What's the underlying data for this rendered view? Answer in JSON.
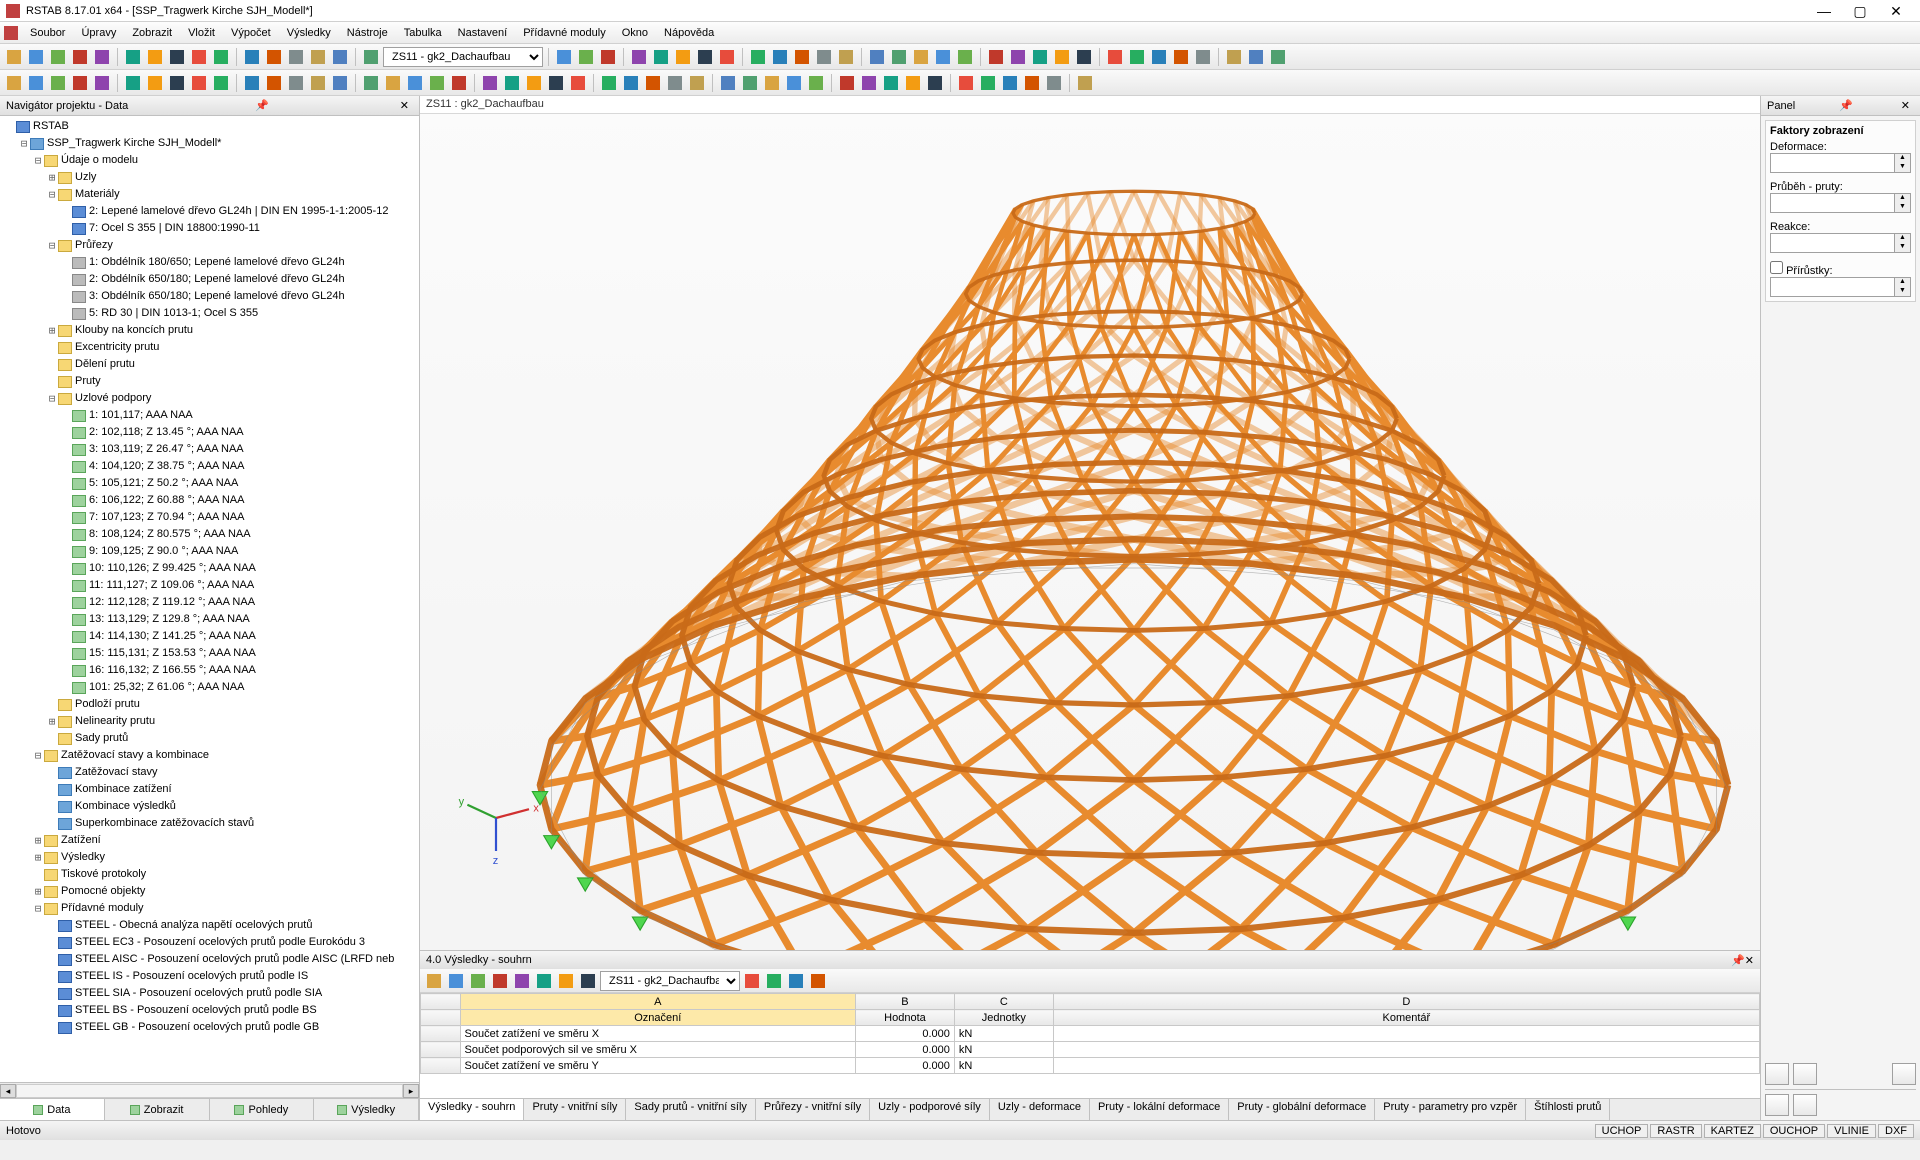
{
  "app": {
    "title": "RSTAB 8.17.01 x64 - [SSP_Tragwerk Kirche SJH_Modell*]"
  },
  "menu": [
    "Soubor",
    "Úpravy",
    "Zobrazit",
    "Vložit",
    "Výpočet",
    "Výsledky",
    "Nástroje",
    "Tabulka",
    "Nastavení",
    "Přídavné moduly",
    "Okno",
    "Nápověda"
  ],
  "toolbar1_combo": "ZS11 - gk2_Dachaufbau",
  "nav": {
    "title": "Navigátor projektu - Data",
    "root": "RSTAB",
    "model": "SSP_Tragwerk Kirche SJH_Modell*",
    "udaje": "Údaje o modelu",
    "uzly": "Uzly",
    "materialy": "Materiály",
    "mat_items": [
      "2: Lepené lamelové dřevo GL24h | DIN EN 1995-1-1:2005-12",
      "7: Ocel S 355 | DIN 18800:1990-11"
    ],
    "prurezy": "Průřezy",
    "prurez_items": [
      "1: Obdélník 180/650; Lepené lamelové dřevo GL24h",
      "2: Obdélník 650/180; Lepené lamelové dřevo GL24h",
      "3: Obdélník 650/180; Lepené lamelové dřevo GL24h",
      "5: RD 30 | DIN 1013-1; Ocel S 355"
    ],
    "klouby": "Klouby na koncích prutu",
    "excentricity": "Excentricity prutu",
    "deleni": "Dělení prutu",
    "pruty": "Pruty",
    "uzlove_podpory": "Uzlové podpory",
    "podpory_items": [
      "1: 101,117; AAA NAA",
      "2: 102,118; Z 13.45 °; AAA NAA",
      "3: 103,119; Z 26.47 °; AAA NAA",
      "4: 104,120; Z 38.75 °; AAA NAA",
      "5: 105,121; Z 50.2 °; AAA NAA",
      "6: 106,122; Z 60.88 °; AAA NAA",
      "7: 107,123; Z 70.94 °; AAA NAA",
      "8: 108,124; Z 80.575 °; AAA NAA",
      "9: 109,125; Z 90.0 °; AAA NAA",
      "10: 110,126; Z 99.425 °; AAA NAA",
      "11: 111,127; Z 109.06 °; AAA NAA",
      "12: 112,128; Z 119.12 °; AAA NAA",
      "13: 113,129; Z 129.8 °; AAA NAA",
      "14: 114,130; Z 141.25 °; AAA NAA",
      "15: 115,131; Z 153.53 °; AAA NAA",
      "16: 116,132; Z 166.55 °; AAA NAA",
      "101: 25,32; Z 61.06 °; AAA NAA"
    ],
    "podlozi": "Podloží prutu",
    "nelinearity": "Nelinearity prutu",
    "sady": "Sady prutů",
    "zatez_stavy": "Zatěžovací stavy a kombinace",
    "zatez_children": [
      "Zatěžovací stavy",
      "Kombinace zatížení",
      "Kombinace výsledků",
      "Superkombinace zatěžovacích stavů"
    ],
    "zatizeni": "Zatížení",
    "vysledky": "Výsledky",
    "tiskove": "Tiskové protokoly",
    "pomocne": "Pomocné objekty",
    "pridavne": "Přídavné moduly",
    "moduly": [
      "STEEL - Obecná analýza napětí ocelových prutů",
      "STEEL EC3 - Posouzení ocelových prutů podle Eurokódu 3",
      "STEEL AISC - Posouzení ocelových prutů podle AISC (LRFD neb",
      "STEEL IS - Posouzení ocelových prutů podle IS",
      "STEEL SIA - Posouzení ocelových prutů podle SIA",
      "STEEL BS - Posouzení ocelových prutů podle BS",
      "STEEL GB - Posouzení ocelových prutů podle GB"
    ],
    "tabs": [
      "Data",
      "Zobrazit",
      "Pohledy",
      "Výsledky"
    ]
  },
  "viewport": {
    "label": "ZS11 : gk2_Dachaufbau",
    "model_color": "#e88b2e",
    "model_dark": "#c86a18",
    "support_color": "#4fd64f",
    "bg": "#fbfbfb",
    "axis_x_color": "#d03030",
    "axis_y_color": "#30a030",
    "axis_z_color": "#3050d0"
  },
  "rightpanel": {
    "title": "Panel",
    "group_title": "Faktory zobrazení",
    "deformace": "Deformace:",
    "prubeh": "Průběh - pruty:",
    "reakce": "Reakce:",
    "prirustky": "Přírůstky:"
  },
  "bottom": {
    "title": "4.0 Výsledky - souhrn",
    "combo": "ZS11 - gk2_Dachaufba",
    "cols_letters": [
      "A",
      "B",
      "C",
      "D"
    ],
    "cols": [
      "Označení",
      "Hodnota",
      "Jednotky",
      "Komentář"
    ],
    "rows": [
      [
        "Součet zatížení ve směru X",
        "0.000",
        "kN",
        ""
      ],
      [
        "Součet podporových sil ve směru X",
        "0.000",
        "kN",
        ""
      ],
      [
        "Součet zatížení ve směru Y",
        "0.000",
        "kN",
        ""
      ]
    ],
    "tabs": [
      "Výsledky - souhrn",
      "Pruty - vnitřní síly",
      "Sady prutů - vnitřní síly",
      "Průřezy - vnitřní síly",
      "Uzly - podporové síly",
      "Uzly - deformace",
      "Pruty - lokální deformace",
      "Pruty - globální deformace",
      "Pruty - parametry pro vzpěr",
      "Štíhlosti prutů"
    ]
  },
  "status": {
    "left": "Hotovo",
    "cells": [
      "UCHOP",
      "RASTR",
      "KARTEZ",
      "OUCHOP",
      "VLINIE",
      "DXF"
    ]
  },
  "toolbar_icon_colors": [
    "#d9a441",
    "#4a90d9",
    "#6ab04c",
    "#c0392b",
    "#8e44ad",
    "#16a085",
    "#f39c12",
    "#2c3e50",
    "#e74c3c",
    "#27ae60",
    "#2980b9",
    "#d35400",
    "#7f8c8d",
    "#c0a050",
    "#5080c0",
    "#50a070"
  ]
}
